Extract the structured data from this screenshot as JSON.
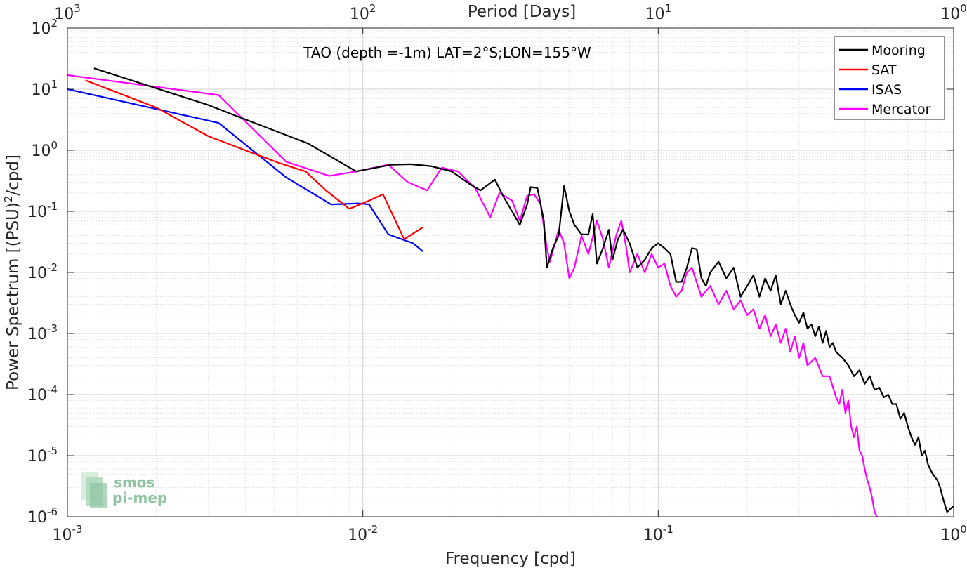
{
  "chart_data": {
    "type": "line",
    "title": "TAO (depth =-1m) LAT=2°S;LON=155°W",
    "xlabel": "Frequency [cpd]",
    "ylabel_main": "Power Spectrum [(PSU)",
    "ylabel_sup": "2",
    "ylabel_tail": "/cpd]",
    "top_xlabel": "Period [Days]",
    "xscale": "log",
    "yscale": "log",
    "xlim": [
      0.001,
      1
    ],
    "ylim": [
      1e-06,
      100
    ],
    "grid": true,
    "legend_position": "top-right",
    "x_ticks": [
      {
        "value": 0.001,
        "base": "10",
        "exp": "-3"
      },
      {
        "value": 0.01,
        "base": "10",
        "exp": "-2"
      },
      {
        "value": 0.1,
        "base": "10",
        "exp": "-1"
      },
      {
        "value": 1,
        "base": "10",
        "exp": "0"
      }
    ],
    "y_ticks": [
      {
        "value": 1e-06,
        "base": "10",
        "exp": "-6"
      },
      {
        "value": 1e-05,
        "base": "10",
        "exp": "-5"
      },
      {
        "value": 0.0001,
        "base": "10",
        "exp": "-4"
      },
      {
        "value": 0.001,
        "base": "10",
        "exp": "-3"
      },
      {
        "value": 0.01,
        "base": "10",
        "exp": "-2"
      },
      {
        "value": 0.1,
        "base": "10",
        "exp": "-1"
      },
      {
        "value": 1,
        "base": "10",
        "exp": "0"
      },
      {
        "value": 10,
        "base": "10",
        "exp": "1"
      },
      {
        "value": 100,
        "base": "10",
        "exp": "2"
      }
    ],
    "top_ticks": [
      {
        "freq": 0.001,
        "base": "10",
        "exp": "3"
      },
      {
        "freq": 0.01,
        "base": "10",
        "exp": "2"
      },
      {
        "freq": 0.1,
        "base": "10",
        "exp": "1"
      },
      {
        "freq": 1,
        "base": "10",
        "exp": "0"
      }
    ],
    "series": [
      {
        "name": "Mooring",
        "color": "#000000",
        "points": [
          [
            0.00123,
            22
          ],
          [
            0.003,
            5.5
          ],
          [
            0.004,
            3.2
          ],
          [
            0.0065,
            1.3
          ],
          [
            0.0095,
            0.45
          ],
          [
            0.0125,
            0.58
          ],
          [
            0.0145,
            0.59
          ],
          [
            0.017,
            0.55
          ],
          [
            0.02,
            0.45
          ],
          [
            0.023,
            0.28
          ],
          [
            0.025,
            0.22
          ],
          [
            0.028,
            0.33
          ],
          [
            0.03,
            0.17
          ],
          [
            0.032,
            0.1
          ],
          [
            0.034,
            0.06
          ],
          [
            0.036,
            0.13
          ],
          [
            0.037,
            0.25
          ],
          [
            0.039,
            0.24
          ],
          [
            0.041,
            0.07
          ],
          [
            0.042,
            0.012
          ],
          [
            0.044,
            0.025
          ],
          [
            0.046,
            0.04
          ],
          [
            0.048,
            0.26
          ],
          [
            0.05,
            0.1
          ],
          [
            0.052,
            0.06
          ],
          [
            0.055,
            0.042
          ],
          [
            0.058,
            0.042
          ],
          [
            0.06,
            0.09
          ],
          [
            0.062,
            0.014
          ],
          [
            0.065,
            0.025
          ],
          [
            0.068,
            0.05
          ],
          [
            0.07,
            0.016
          ],
          [
            0.073,
            0.035
          ],
          [
            0.076,
            0.05
          ],
          [
            0.08,
            0.03
          ],
          [
            0.085,
            0.012
          ],
          [
            0.09,
            0.016
          ],
          [
            0.095,
            0.025
          ],
          [
            0.1,
            0.03
          ],
          [
            0.105,
            0.025
          ],
          [
            0.11,
            0.02
          ],
          [
            0.115,
            0.007
          ],
          [
            0.12,
            0.007
          ],
          [
            0.125,
            0.012
          ],
          [
            0.13,
            0.025
          ],
          [
            0.135,
            0.024
          ],
          [
            0.14,
            0.008
          ],
          [
            0.145,
            0.006
          ],
          [
            0.15,
            0.01
          ],
          [
            0.16,
            0.015
          ],
          [
            0.17,
            0.008
          ],
          [
            0.18,
            0.012
          ],
          [
            0.19,
            0.004
          ],
          [
            0.2,
            0.006
          ],
          [
            0.21,
            0.009
          ],
          [
            0.22,
            0.004
          ],
          [
            0.23,
            0.008
          ],
          [
            0.24,
            0.005
          ],
          [
            0.25,
            0.009
          ],
          [
            0.26,
            0.003
          ],
          [
            0.27,
            0.005
          ],
          [
            0.28,
            0.003
          ],
          [
            0.29,
            0.002
          ],
          [
            0.3,
            0.0015
          ],
          [
            0.31,
            0.0022
          ],
          [
            0.32,
            0.0012
          ],
          [
            0.33,
            0.0014
          ],
          [
            0.34,
            0.0009
          ],
          [
            0.35,
            0.0013
          ],
          [
            0.36,
            0.0007
          ],
          [
            0.37,
            0.0011
          ],
          [
            0.38,
            0.0006
          ],
          [
            0.39,
            0.0007
          ],
          [
            0.4,
            0.0005
          ],
          [
            0.42,
            0.0004
          ],
          [
            0.44,
            0.0003
          ],
          [
            0.46,
            0.0002
          ],
          [
            0.48,
            0.00025
          ],
          [
            0.5,
            0.00015
          ],
          [
            0.52,
            0.0002
          ],
          [
            0.54,
            0.00012
          ],
          [
            0.56,
            0.00013
          ],
          [
            0.58,
            9e-05
          ],
          [
            0.6,
            0.0001
          ],
          [
            0.62,
            7e-05
          ],
          [
            0.64,
            7e-05
          ],
          [
            0.66,
            4e-05
          ],
          [
            0.68,
            5e-05
          ],
          [
            0.7,
            3e-05
          ],
          [
            0.72,
            2e-05
          ],
          [
            0.74,
            1.5e-05
          ],
          [
            0.76,
            2e-05
          ],
          [
            0.78,
            1e-05
          ],
          [
            0.8,
            1.2e-05
          ],
          [
            0.82,
            7e-06
          ],
          [
            0.85,
            5e-06
          ],
          [
            0.88,
            4e-06
          ],
          [
            0.9,
            3e-06
          ],
          [
            0.92,
            2e-06
          ],
          [
            0.95,
            1.2e-06
          ],
          [
            1.0,
            1.5e-06
          ]
        ]
      },
      {
        "name": "SAT",
        "color": "#ff0000",
        "points": [
          [
            0.00115,
            14
          ],
          [
            0.002,
            5
          ],
          [
            0.003,
            1.7
          ],
          [
            0.004,
            1.0
          ],
          [
            0.0052,
            0.62
          ],
          [
            0.0064,
            0.45
          ],
          [
            0.0075,
            0.22
          ],
          [
            0.009,
            0.11
          ],
          [
            0.0105,
            0.15
          ],
          [
            0.0117,
            0.19
          ],
          [
            0.0138,
            0.035
          ],
          [
            0.016,
            0.055
          ]
        ]
      },
      {
        "name": "ISAS",
        "color": "#0000ff",
        "points": [
          [
            0.001,
            10
          ],
          [
            0.00325,
            2.8
          ],
          [
            0.0055,
            0.36
          ],
          [
            0.0078,
            0.13
          ],
          [
            0.0097,
            0.135
          ],
          [
            0.0105,
            0.13
          ],
          [
            0.0122,
            0.042
          ],
          [
            0.0148,
            0.03
          ],
          [
            0.016,
            0.022
          ]
        ]
      },
      {
        "name": "Mercator",
        "color": "#ff00ff",
        "points": [
          [
            0.001,
            17
          ],
          [
            0.00325,
            8
          ],
          [
            0.0055,
            0.65
          ],
          [
            0.0077,
            0.38
          ],
          [
            0.0095,
            0.45
          ],
          [
            0.0122,
            0.58
          ],
          [
            0.0142,
            0.3
          ],
          [
            0.0165,
            0.22
          ],
          [
            0.0185,
            0.52
          ],
          [
            0.021,
            0.45
          ],
          [
            0.024,
            0.24
          ],
          [
            0.027,
            0.08
          ],
          [
            0.029,
            0.2
          ],
          [
            0.032,
            0.15
          ],
          [
            0.034,
            0.07
          ],
          [
            0.036,
            0.18
          ],
          [
            0.038,
            0.19
          ],
          [
            0.04,
            0.13
          ],
          [
            0.042,
            0.025
          ],
          [
            0.043,
            0.015
          ],
          [
            0.046,
            0.05
          ],
          [
            0.048,
            0.03
          ],
          [
            0.05,
            0.008
          ],
          [
            0.052,
            0.012
          ],
          [
            0.055,
            0.04
          ],
          [
            0.058,
            0.02
          ],
          [
            0.062,
            0.07
          ],
          [
            0.065,
            0.035
          ],
          [
            0.068,
            0.012
          ],
          [
            0.072,
            0.04
          ],
          [
            0.075,
            0.07
          ],
          [
            0.078,
            0.025
          ],
          [
            0.08,
            0.01
          ],
          [
            0.085,
            0.02
          ],
          [
            0.09,
            0.01
          ],
          [
            0.095,
            0.02
          ],
          [
            0.1,
            0.012
          ],
          [
            0.105,
            0.014
          ],
          [
            0.11,
            0.006
          ],
          [
            0.115,
            0.004
          ],
          [
            0.12,
            0.005
          ],
          [
            0.125,
            0.01
          ],
          [
            0.13,
            0.012
          ],
          [
            0.14,
            0.004
          ],
          [
            0.15,
            0.006
          ],
          [
            0.16,
            0.003
          ],
          [
            0.17,
            0.005
          ],
          [
            0.18,
            0.0025
          ],
          [
            0.19,
            0.0035
          ],
          [
            0.2,
            0.002
          ],
          [
            0.21,
            0.0025
          ],
          [
            0.22,
            0.0012
          ],
          [
            0.23,
            0.002
          ],
          [
            0.24,
            0.0009
          ],
          [
            0.25,
            0.0014
          ],
          [
            0.26,
            0.0007
          ],
          [
            0.27,
            0.0012
          ],
          [
            0.28,
            0.0005
          ],
          [
            0.29,
            0.0009
          ],
          [
            0.3,
            0.0004
          ],
          [
            0.31,
            0.0007
          ],
          [
            0.32,
            0.0003
          ],
          [
            0.34,
            0.0004
          ],
          [
            0.36,
            0.0002
          ],
          [
            0.38,
            0.0002
          ],
          [
            0.4,
            9e-05
          ],
          [
            0.41,
            7e-05
          ],
          [
            0.42,
            0.00012
          ],
          [
            0.43,
            5e-05
          ],
          [
            0.44,
            8e-05
          ],
          [
            0.45,
            3e-05
          ],
          [
            0.46,
            2e-05
          ],
          [
            0.47,
            3e-05
          ],
          [
            0.48,
            1.2e-05
          ],
          [
            0.49,
            1e-05
          ],
          [
            0.5,
            6e-06
          ],
          [
            0.51,
            4e-06
          ],
          [
            0.52,
            3e-06
          ],
          [
            0.53,
            2e-06
          ],
          [
            0.54,
            1.2e-06
          ],
          [
            0.55,
            1e-06
          ]
        ]
      }
    ]
  },
  "logo": {
    "line1": "smos",
    "line2": "pi-mep"
  }
}
